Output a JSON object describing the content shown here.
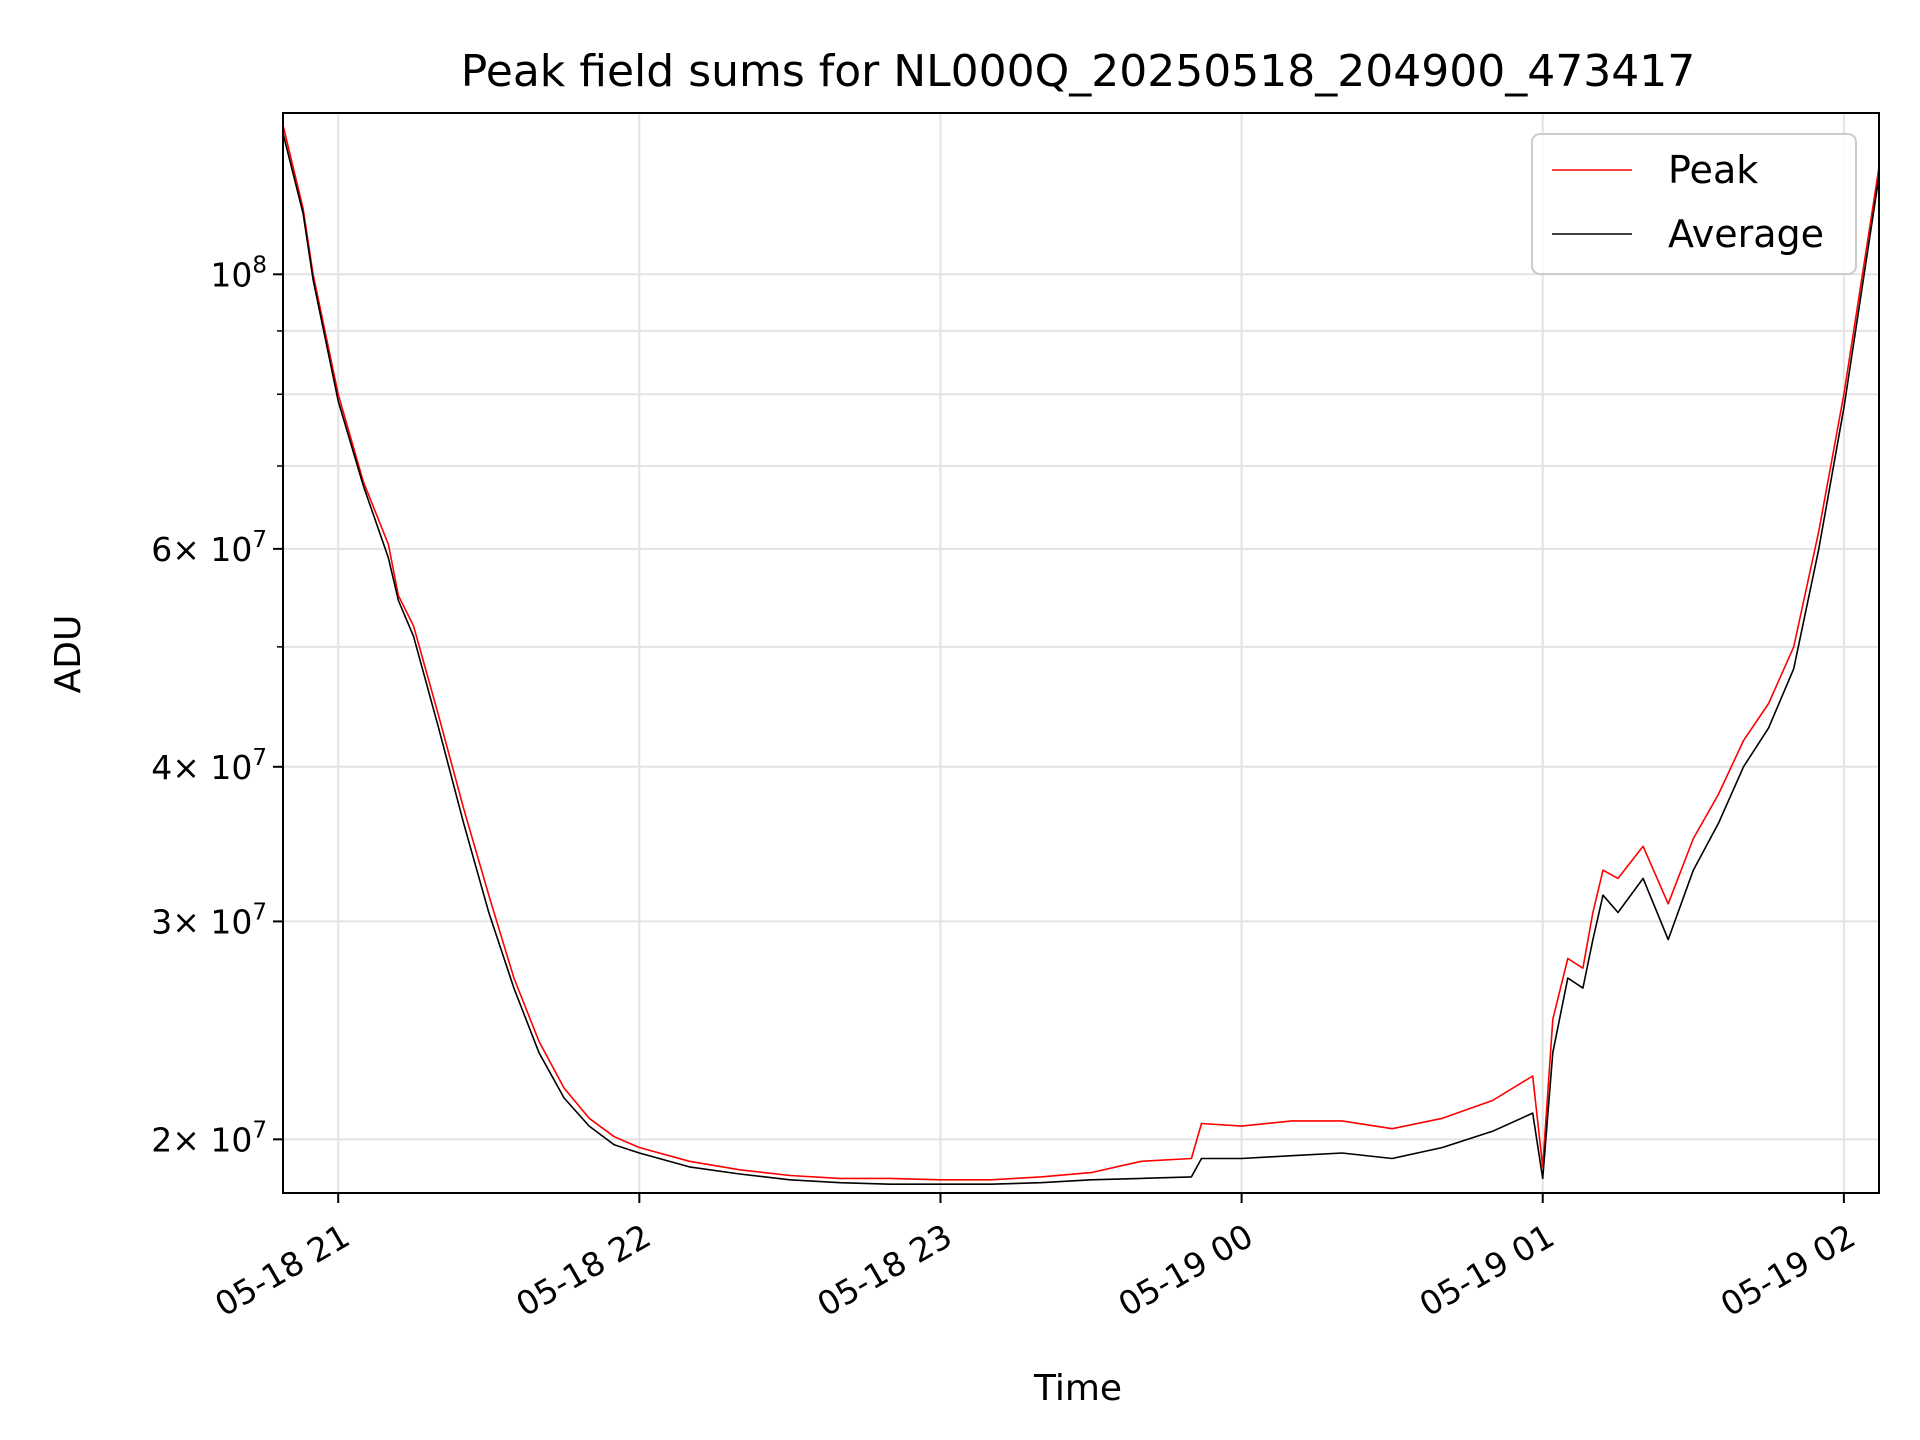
{
  "chart_data": {
    "type": "line",
    "title": "Peak field sums for NL000Q_20250518_204900_473417",
    "xlabel": "Time",
    "ylabel": "ADU",
    "x_scale": "time",
    "y_scale": "log",
    "xlim": [
      "2025-05-18 20:49",
      "2025-05-19 02:07"
    ],
    "ylim": [
      18100000,
      135000000
    ],
    "x_ticks": [
      {
        "value": "2025-05-18 21:00",
        "label": "05-18 21"
      },
      {
        "value": "2025-05-18 22:00",
        "label": "05-18 22"
      },
      {
        "value": "2025-05-18 23:00",
        "label": "05-18 23"
      },
      {
        "value": "2025-05-19 00:00",
        "label": "05-19 00"
      },
      {
        "value": "2025-05-19 01:00",
        "label": "05-19 01"
      },
      {
        "value": "2025-05-19 02:00",
        "label": "05-19 02"
      }
    ],
    "y_ticks": [
      {
        "value": 20000000,
        "mantissa": "2",
        "exponent": "7"
      },
      {
        "value": 30000000,
        "mantissa": "3",
        "exponent": "7"
      },
      {
        "value": 40000000,
        "mantissa": "4",
        "exponent": "7"
      },
      {
        "value": 60000000,
        "mantissa": "6",
        "exponent": "7"
      },
      {
        "value": 100000000,
        "mantissa": "",
        "exponent": "8"
      }
    ],
    "times_label": "× ",
    "grid": true,
    "legend_position": "upper right",
    "series": [
      {
        "name": "Peak",
        "color": "#ff0000",
        "x": [
          "2025-05-18 20:49",
          "2025-05-18 20:53",
          "2025-05-18 20:55",
          "2025-05-18 21:00",
          "2025-05-18 21:05",
          "2025-05-18 21:10",
          "2025-05-18 21:12",
          "2025-05-18 21:15",
          "2025-05-18 21:20",
          "2025-05-18 21:25",
          "2025-05-18 21:30",
          "2025-05-18 21:35",
          "2025-05-18 21:40",
          "2025-05-18 21:45",
          "2025-05-18 21:50",
          "2025-05-18 21:55",
          "2025-05-18 22:00",
          "2025-05-18 22:10",
          "2025-05-18 22:20",
          "2025-05-18 22:30",
          "2025-05-18 22:40",
          "2025-05-18 22:50",
          "2025-05-18 23:00",
          "2025-05-18 23:10",
          "2025-05-18 23:20",
          "2025-05-18 23:30",
          "2025-05-18 23:40",
          "2025-05-18 23:50",
          "2025-05-18 23:52",
          "2025-05-19 00:00",
          "2025-05-19 00:10",
          "2025-05-19 00:20",
          "2025-05-19 00:30",
          "2025-05-19 00:40",
          "2025-05-19 00:50",
          "2025-05-19 00:58",
          "2025-05-19 01:00",
          "2025-05-19 01:02",
          "2025-05-19 01:05",
          "2025-05-19 01:08",
          "2025-05-19 01:10",
          "2025-05-19 01:12",
          "2025-05-19 01:15",
          "2025-05-19 01:20",
          "2025-05-19 01:25",
          "2025-05-19 01:30",
          "2025-05-19 01:35",
          "2025-05-19 01:40",
          "2025-05-19 01:45",
          "2025-05-19 01:50",
          "2025-05-19 01:55",
          "2025-05-19 02:00",
          "2025-05-19 02:07"
        ],
        "values": [
          132000000,
          113000000,
          100000000,
          80000000,
          68000000,
          60500000,
          55000000,
          52000000,
          44000000,
          37000000,
          31500000,
          27000000,
          24000000,
          22000000,
          20800000,
          20100000,
          19700000,
          19200000,
          18900000,
          18700000,
          18600000,
          18600000,
          18550000,
          18550000,
          18650000,
          18800000,
          19200000,
          19300000,
          20600000,
          20500000,
          20700000,
          20700000,
          20400000,
          20800000,
          21500000,
          22500000,
          19000000,
          25000000,
          28000000,
          27500000,
          30500000,
          33000000,
          32500000,
          34500000,
          31000000,
          35000000,
          38000000,
          42000000,
          45000000,
          50000000,
          62000000,
          80000000,
          122000000
        ]
      },
      {
        "name": "Average",
        "color": "#000000",
        "x": [
          "2025-05-18 20:49",
          "2025-05-18 20:53",
          "2025-05-18 20:55",
          "2025-05-18 21:00",
          "2025-05-18 21:05",
          "2025-05-18 21:10",
          "2025-05-18 21:12",
          "2025-05-18 21:15",
          "2025-05-18 21:20",
          "2025-05-18 21:25",
          "2025-05-18 21:30",
          "2025-05-18 21:35",
          "2025-05-18 21:40",
          "2025-05-18 21:45",
          "2025-05-18 21:50",
          "2025-05-18 21:55",
          "2025-05-18 22:00",
          "2025-05-18 22:10",
          "2025-05-18 22:20",
          "2025-05-18 22:30",
          "2025-05-18 22:40",
          "2025-05-18 22:50",
          "2025-05-18 23:00",
          "2025-05-18 23:10",
          "2025-05-18 23:20",
          "2025-05-18 23:30",
          "2025-05-18 23:40",
          "2025-05-18 23:50",
          "2025-05-18 23:52",
          "2025-05-19 00:00",
          "2025-05-19 00:10",
          "2025-05-19 00:20",
          "2025-05-19 00:30",
          "2025-05-19 00:40",
          "2025-05-19 00:50",
          "2025-05-19 00:58",
          "2025-05-19 01:00",
          "2025-05-19 01:02",
          "2025-05-19 01:05",
          "2025-05-19 01:08",
          "2025-05-19 01:10",
          "2025-05-19 01:12",
          "2025-05-19 01:15",
          "2025-05-19 01:20",
          "2025-05-19 01:25",
          "2025-05-19 01:30",
          "2025-05-19 01:35",
          "2025-05-19 01:40",
          "2025-05-19 01:45",
          "2025-05-19 01:50",
          "2025-05-19 01:55",
          "2025-05-19 02:00",
          "2025-05-19 02:07"
        ],
        "values": [
          130000000,
          112000000,
          99000000,
          79000000,
          67500000,
          59000000,
          54500000,
          51000000,
          43000000,
          36000000,
          30500000,
          26500000,
          23500000,
          21600000,
          20500000,
          19800000,
          19500000,
          19000000,
          18750000,
          18550000,
          18450000,
          18400000,
          18400000,
          18400000,
          18450000,
          18550000,
          18600000,
          18650000,
          19300000,
          19300000,
          19400000,
          19500000,
          19300000,
          19700000,
          20300000,
          21000000,
          18600000,
          23500000,
          27000000,
          26500000,
          29000000,
          31500000,
          30500000,
          32500000,
          29000000,
          33000000,
          36000000,
          40000000,
          43000000,
          48000000,
          60000000,
          78000000,
          120000000
        ]
      }
    ]
  }
}
